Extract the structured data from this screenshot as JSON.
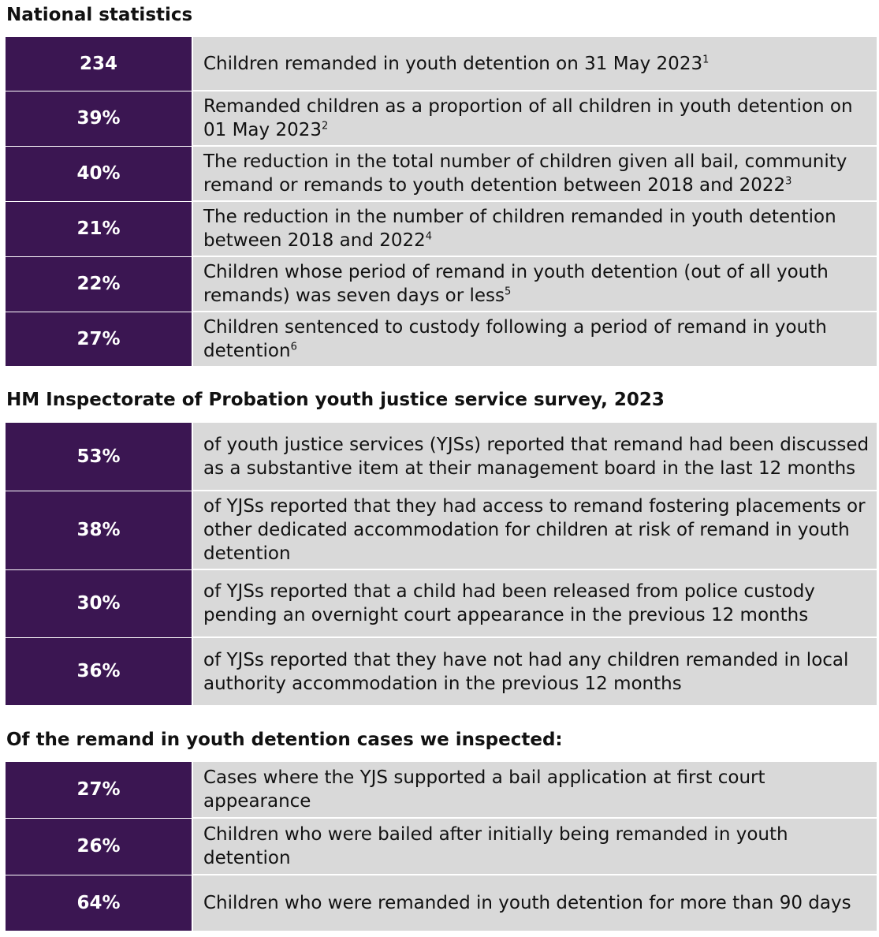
{
  "national": {
    "title": "National statistics",
    "rows": [
      {
        "value": "234",
        "text": "Children remanded in youth detention on 31 May 2023",
        "note": "1"
      },
      {
        "value": "39%",
        "text": "Remanded children as a proportion of all children in youth detention on 01 May 2023",
        "note": "2"
      },
      {
        "value": "40%",
        "text": "The reduction in the total number of children given all bail, community remand or remands to youth detention between 2018 and 2022",
        "note": "3"
      },
      {
        "value": "21%",
        "text": "The reduction in the number of children remanded in youth detention between 2018 and 2022",
        "note": "4"
      },
      {
        "value": "22%",
        "text": "Children whose period of remand in youth detention (out of all youth remands) was seven days or less",
        "note": "5"
      },
      {
        "value": "27%",
        "text": "Children sentenced to custody following a period of remand in youth detention",
        "note": "6"
      }
    ]
  },
  "survey": {
    "title": "HM Inspectorate of Probation youth justice service survey, 2023",
    "rows": [
      {
        "value": "53%",
        "text": "of youth justice services (YJSs) reported that remand had been discussed as a substantive item at their management board in the last 12 months"
      },
      {
        "value": "38%",
        "text": "of YJSs reported that they had access to remand fostering placements or other dedicated accommodation for children at risk of remand in youth detention"
      },
      {
        "value": "30%",
        "text": "of YJSs reported that a child had been released from police custody pending an overnight court appearance in the previous 12 months"
      },
      {
        "value": "36%",
        "text": "of YJSs reported that they have not had any children remanded in local authority accommodation in the previous 12 months"
      }
    ]
  },
  "inspected": {
    "title": "Of the remand in youth detention cases we inspected:",
    "rows": [
      {
        "value": "27%",
        "text": "Cases where the YJS supported a bail application at first court appearance"
      },
      {
        "value": "26%",
        "text": "Children who were bailed after initially being remanded in youth detention"
      },
      {
        "value": "64%",
        "text": "Children who were remanded in youth detention for more than 90 days"
      }
    ]
  }
}
